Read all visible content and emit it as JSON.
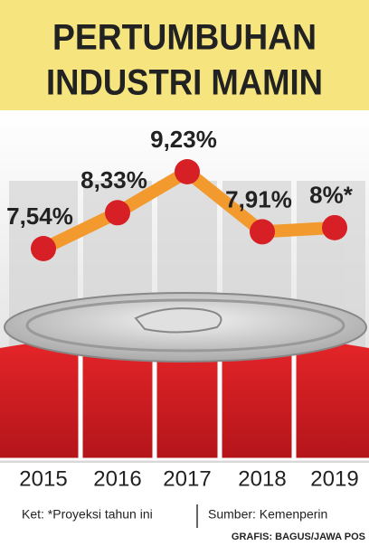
{
  "chart_data": {
    "type": "line",
    "title": [
      "PERTUMBUHAN",
      "INDUSTRI MAMIN"
    ],
    "categories": [
      "2015",
      "2016",
      "2017",
      "2018",
      "2019"
    ],
    "series": [
      {
        "color": "#f39a2e",
        "values": [
          7.54,
          8.33,
          9.23,
          7.91,
          8
        ],
        "value_labels": [
          "7,54%",
          "8,33%",
          "9,23%",
          "7,91%",
          "8%*"
        ]
      }
    ],
    "note": "Ket: *Proyeksi tahun ini",
    "source": "Sumber: Kemenperin",
    "credit": "GRAFIS: BAGUS/JAWA POS"
  }
}
